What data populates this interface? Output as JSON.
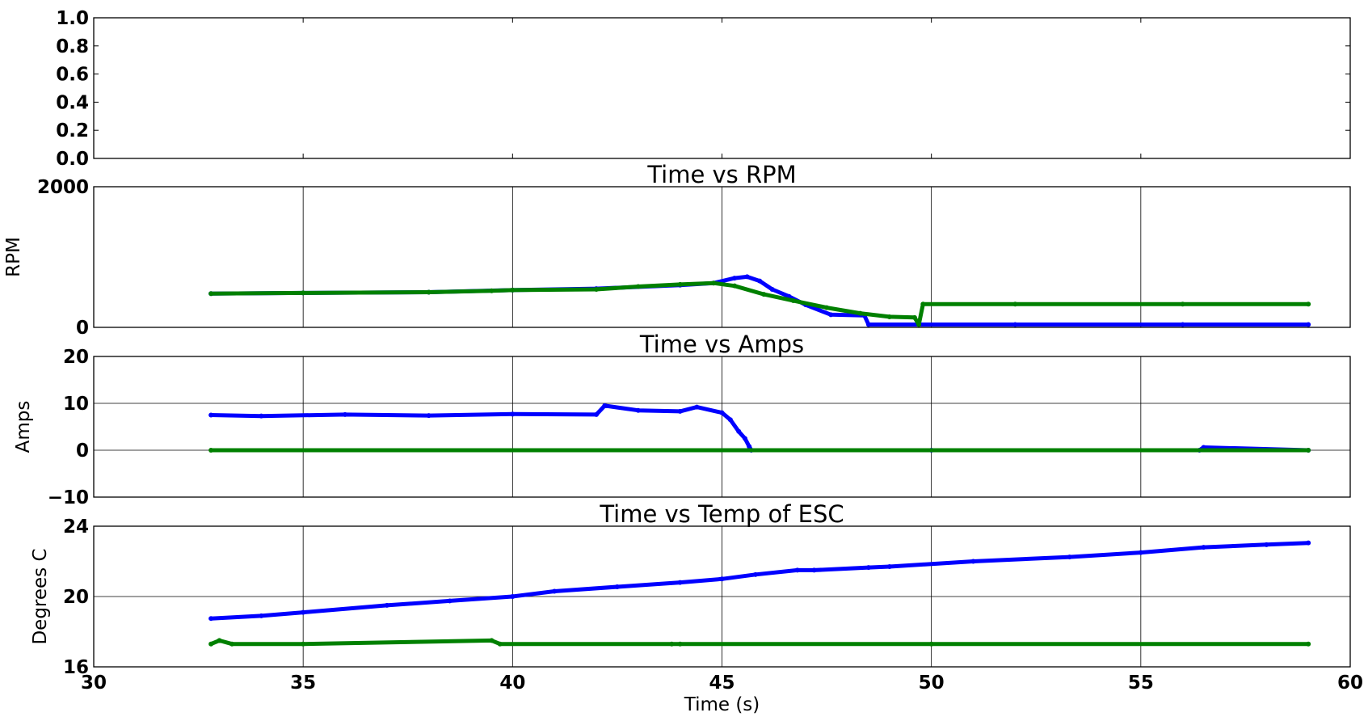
{
  "chart_data": [
    {
      "type": "line",
      "title": "",
      "xlabel": "",
      "ylabel": "",
      "xlim": [
        30,
        60
      ],
      "ylim": [
        0.0,
        1.0
      ],
      "yticks": [
        0.0,
        0.2,
        0.4,
        0.6,
        0.8,
        1.0
      ],
      "ytick_labels": [
        "0.0",
        "0.2",
        "0.4",
        "0.6",
        "0.8",
        "1.0"
      ],
      "grid": false,
      "series": []
    },
    {
      "type": "scatter",
      "title": "Time vs RPM",
      "xlabel": "",
      "ylabel": "RPM",
      "xlim": [
        30,
        60
      ],
      "ylim": [
        0,
        2000
      ],
      "yticks": [
        0,
        2000
      ],
      "ytick_labels": [
        "0",
        "2000"
      ],
      "grid": true,
      "series": [
        {
          "color": "#0000ff",
          "x": [
            32.8,
            35,
            38,
            40,
            42,
            44,
            44.8,
            45.3,
            45.6,
            45.9,
            46.2,
            46.6,
            47,
            47.6,
            48.4,
            48.5,
            52,
            56,
            59
          ],
          "y": [
            480,
            490,
            500,
            530,
            550,
            600,
            630,
            700,
            720,
            660,
            540,
            440,
            320,
            180,
            170,
            40,
            40,
            40,
            40
          ]
        },
        {
          "color": "#008000",
          "x": [
            32.8,
            35,
            38,
            39.5,
            40,
            42,
            43,
            44,
            44.8,
            45.3,
            46,
            46.7,
            47.5,
            48.3,
            49,
            49.6,
            49.7,
            49.8,
            52,
            56,
            59
          ],
          "y": [
            480,
            490,
            500,
            520,
            530,
            540,
            580,
            610,
            630,
            590,
            470,
            380,
            280,
            200,
            150,
            140,
            40,
            330,
            330,
            330,
            330
          ]
        }
      ]
    },
    {
      "type": "scatter",
      "title": "Time vs Amps",
      "xlabel": "",
      "ylabel": "Amps",
      "xlim": [
        30,
        60
      ],
      "ylim": [
        -10,
        20
      ],
      "yticks": [
        -10,
        0,
        10,
        20
      ],
      "ytick_labels": [
        "−10",
        "0",
        "10",
        "20"
      ],
      "grid": true,
      "series": [
        {
          "color": "#0000ff",
          "x": [
            32.8,
            34,
            36,
            38,
            40,
            42,
            42.2,
            43,
            44,
            44.4,
            45,
            45.2,
            45.4,
            45.55,
            45.65,
            45.7,
            50,
            56.4,
            56.5,
            59
          ],
          "y": [
            7.5,
            7.3,
            7.6,
            7.4,
            7.7,
            7.6,
            9.5,
            8.5,
            8.3,
            9.2,
            8,
            6.5,
            4,
            2.5,
            0.8,
            0,
            0,
            0,
            0.6,
            0
          ]
        },
        {
          "color": "#008000",
          "x": [
            32.8,
            59
          ],
          "y": [
            0,
            0
          ]
        }
      ]
    },
    {
      "type": "scatter",
      "title": "Time vs Temp of ESC",
      "xlabel": "Time (s)",
      "ylabel": "Degrees C",
      "xlim": [
        30,
        60
      ],
      "ylim": [
        16,
        24
      ],
      "yticks": [
        16,
        20,
        24
      ],
      "ytick_labels": [
        "16",
        "20",
        "24"
      ],
      "xticks": [
        30,
        35,
        40,
        45,
        50,
        55,
        60
      ],
      "xtick_labels": [
        "30",
        "35",
        "40",
        "45",
        "50",
        "55",
        "60"
      ],
      "grid": true,
      "series": [
        {
          "color": "#0000ff",
          "x": [
            32.8,
            34,
            35,
            37,
            38.5,
            40,
            41,
            42.5,
            44,
            45,
            45.8,
            46.8,
            47.2,
            48.5,
            49,
            51,
            53.3,
            55,
            56.5,
            58,
            59
          ],
          "y": [
            18.75,
            18.9,
            19.1,
            19.5,
            19.75,
            20,
            20.3,
            20.55,
            20.8,
            21,
            21.25,
            21.5,
            21.5,
            21.65,
            21.7,
            22,
            22.25,
            22.5,
            22.8,
            22.95,
            23.05
          ]
        },
        {
          "color": "#008000",
          "x": [
            32.8,
            33,
            33.3,
            35,
            39.5,
            39.7,
            43.8,
            44,
            50,
            59
          ],
          "y": [
            17.3,
            17.5,
            17.3,
            17.3,
            17.5,
            17.3,
            17.3,
            17.3,
            17.3,
            17.3
          ]
        }
      ]
    }
  ]
}
